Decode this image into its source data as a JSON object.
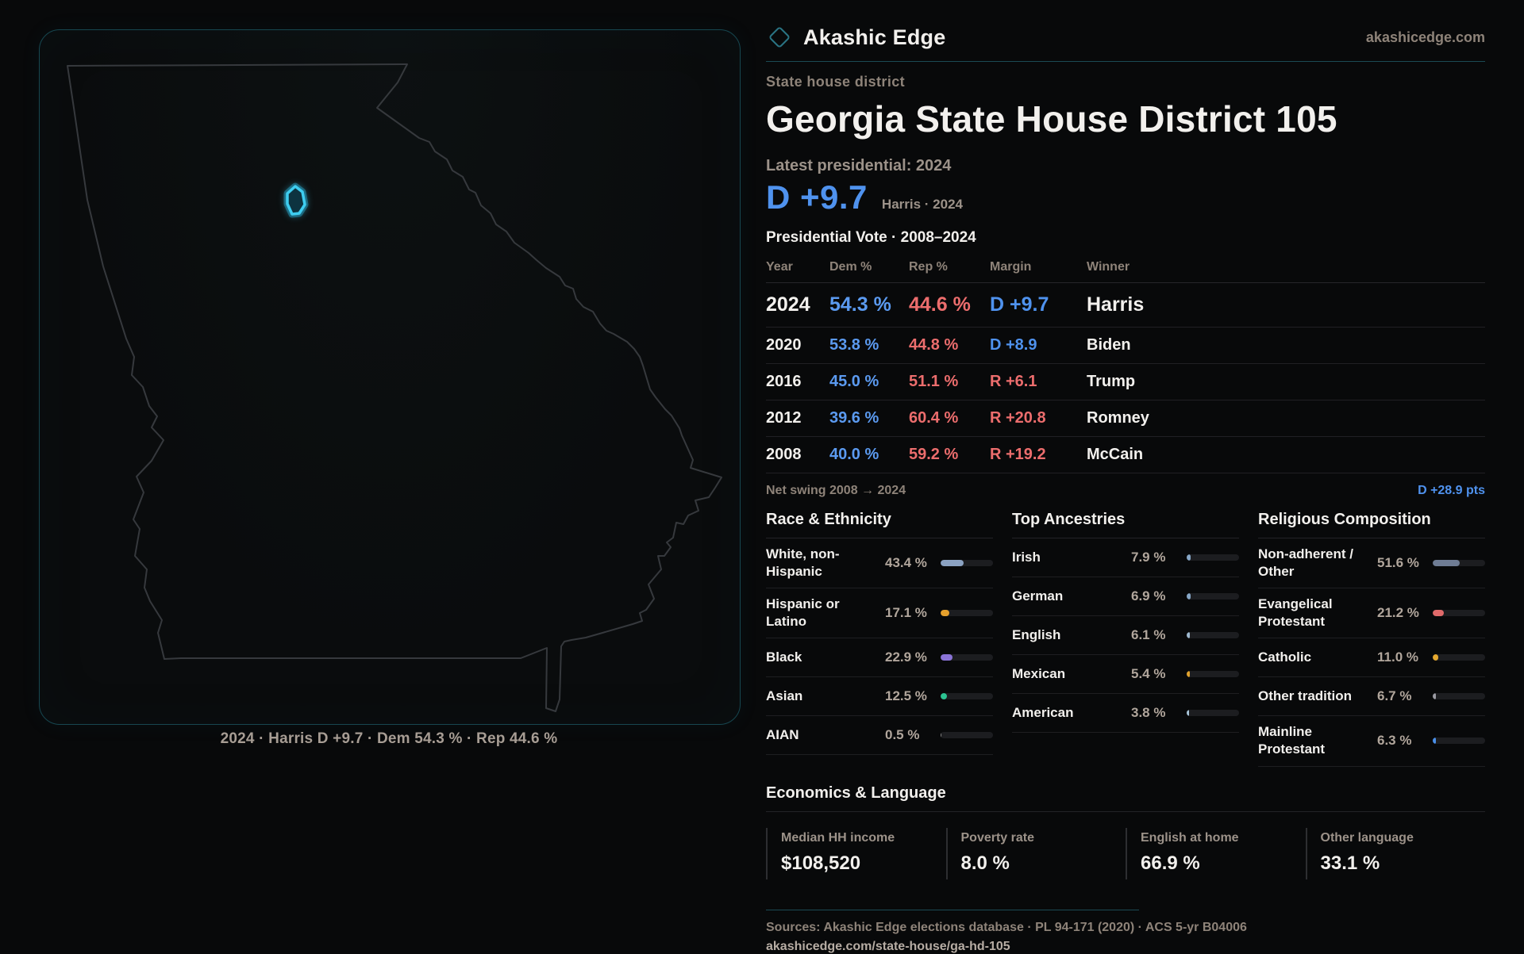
{
  "brand": {
    "name": "Akashic Edge",
    "site": "akashicedge.com"
  },
  "header": {
    "eyebrow": "State house district",
    "title": "Georgia State House District 105",
    "latest_label": "Latest presidential: 2024",
    "lead_margin": "D +9.7",
    "lead_context": "Harris · 2024"
  },
  "map": {
    "caption": "2024 · Harris D +9.7 · Dem 54.3 % · Rep 44.6 %"
  },
  "pres_table": {
    "title": "Presidential Vote · 2008–2024",
    "columns": [
      "Year",
      "Dem %",
      "Rep %",
      "Margin",
      "Winner"
    ],
    "rows": [
      {
        "year": "2024",
        "dem": "54.3 %",
        "rep": "44.6 %",
        "margin": "D +9.7",
        "winner": "Harris",
        "margin_color": "#4f92ee"
      },
      {
        "year": "2020",
        "dem": "53.8 %",
        "rep": "44.8 %",
        "margin": "D +8.9",
        "winner": "Biden",
        "margin_color": "#4f92ee"
      },
      {
        "year": "2016",
        "dem": "45.0 %",
        "rep": "51.1 %",
        "margin": "R +6.1",
        "winner": "Trump",
        "margin_color": "#ec6d6d"
      },
      {
        "year": "2012",
        "dem": "39.6 %",
        "rep": "60.4 %",
        "margin": "R +20.8",
        "winner": "Romney",
        "margin_color": "#ec6d6d"
      },
      {
        "year": "2008",
        "dem": "40.0 %",
        "rep": "59.2 %",
        "margin": "R +19.2",
        "winner": "McCain",
        "margin_color": "#ec6d6d"
      }
    ]
  },
  "net_swing": {
    "label": "Net swing 2008 → 2024",
    "value": "D +28.9 pts"
  },
  "race": {
    "title": "Race & Ethnicity",
    "rows": [
      {
        "label": "White, non-Hispanic",
        "value_label": "43.4 %",
        "value": 43.4,
        "color": "#8ba2c2"
      },
      {
        "label": "Hispanic or Latino",
        "value_label": "17.1 %",
        "value": 17.1,
        "color": "#e5a02c"
      },
      {
        "label": "Black",
        "value_label": "22.9 %",
        "value": 22.9,
        "color": "#8b74d8"
      },
      {
        "label": "Asian",
        "value_label": "12.5 %",
        "value": 12.5,
        "color": "#2cc392"
      },
      {
        "label": "AIAN",
        "value_label": "0.5 %",
        "value": 0.5,
        "color": "#8a8a8a"
      }
    ]
  },
  "ancestries": {
    "title": "Top Ancestries",
    "rows": [
      {
        "label": "Irish",
        "value_label": "7.9 %",
        "value": 7.9,
        "color": "#86a6c6"
      },
      {
        "label": "German",
        "value_label": "6.9 %",
        "value": 6.9,
        "color": "#86a6c6"
      },
      {
        "label": "English",
        "value_label": "6.1 %",
        "value": 6.1,
        "color": "#9eb8cf"
      },
      {
        "label": "Mexican",
        "value_label": "5.4 %",
        "value": 5.4,
        "color": "#e0a22e"
      },
      {
        "label": "American",
        "value_label": "3.8 %",
        "value": 3.8,
        "color": "#a8c4d8"
      }
    ]
  },
  "religion": {
    "title": "Religious Composition",
    "rows": [
      {
        "label": "Non-adherent / Other",
        "value_label": "51.6 %",
        "value": 51.6,
        "color": "#6e7c94"
      },
      {
        "label": "Evangelical Protestant",
        "value_label": "21.2 %",
        "value": 21.2,
        "color": "#e06a6a"
      },
      {
        "label": "Catholic",
        "value_label": "11.0 %",
        "value": 11.0,
        "color": "#e5a82f"
      },
      {
        "label": "Other tradition",
        "value_label": "6.7 %",
        "value": 6.7,
        "color": "#9a9aa2"
      },
      {
        "label": "Mainline Protestant",
        "value_label": "6.3 %",
        "value": 6.3,
        "color": "#4a8fe8"
      }
    ]
  },
  "economics": {
    "title": "Economics & Language",
    "stats": [
      {
        "label": "Median HH income",
        "value": "$108,520"
      },
      {
        "label": "Poverty rate",
        "value": "8.0 %"
      },
      {
        "label": "English at home",
        "value": "66.9 %"
      },
      {
        "label": "Other language",
        "value": "33.1 %"
      }
    ]
  },
  "footer": {
    "sources": "Sources: Akashic Edge elections database · PL 94-171 (2020) · ACS 5-yr B04006",
    "permalink": "akashicedge.com/state-house/ga-hd-105"
  },
  "accent_colors": {
    "dem_blue": "#5b9af0",
    "rep_red": "#ec6d6d",
    "teal": "#3ecdf0"
  }
}
